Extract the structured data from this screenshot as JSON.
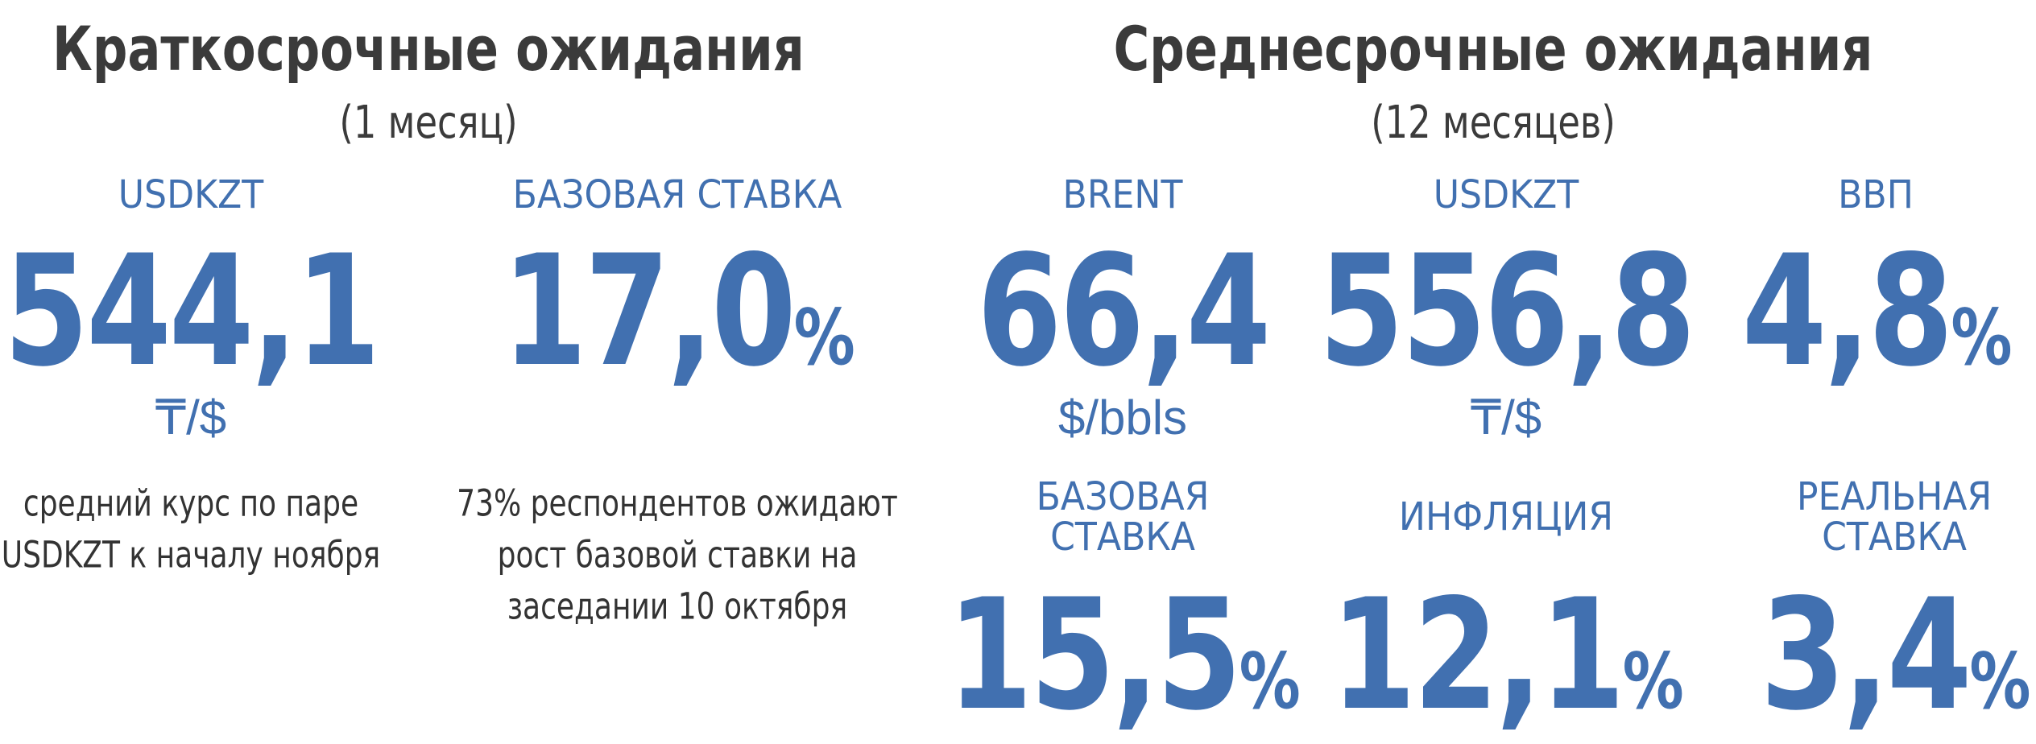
{
  "sections": [
    {
      "title": "Краткосрочные ожидания",
      "subtitle": "(1 месяц)",
      "items": [
        {
          "label": [
            "USDKZT"
          ],
          "value": "544,1",
          "unit": "₸/$",
          "note": [
            "средний курс по паре",
            "USDKZT к началу ноября"
          ]
        },
        {
          "label": [
            "БАЗОВАЯ СТАВКА"
          ],
          "value": "17,0",
          "suffix": "%",
          "note": [
            "73% респондентов ожидают",
            "рост базовой ставки на",
            "заседании 10 октября"
          ]
        }
      ]
    },
    {
      "title": "Среднесрочные ожидания",
      "subtitle": "(12 месяцев)",
      "items": [
        {
          "label": [
            "BRENT"
          ],
          "value": "66,4",
          "unit": "$/bbls"
        },
        {
          "label": [
            "USDKZT"
          ],
          "value": "556,8",
          "unit": "₸/$"
        },
        {
          "label": [
            "ВВП"
          ],
          "value": "4,8",
          "suffix": "%"
        },
        {
          "label": [
            "БАЗОВАЯ",
            "СТАВКА"
          ],
          "value": "15,5",
          "suffix": "%"
        },
        {
          "label": [
            "ИНФЛЯЦИЯ"
          ],
          "value": "12,1",
          "suffix": "%"
        },
        {
          "label": [
            "РЕАЛЬНАЯ",
            "СТАВКА"
          ],
          "value": "3,4",
          "suffix": "%"
        }
      ]
    }
  ]
}
